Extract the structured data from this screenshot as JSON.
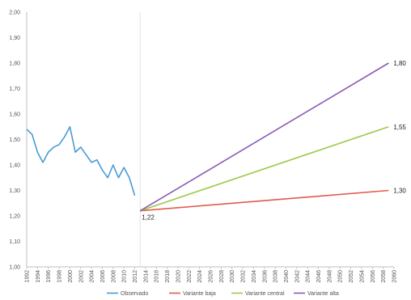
{
  "chart_data": {
    "type": "line",
    "title": "",
    "xlabel": "",
    "ylabel": "",
    "ylim": [
      1.0,
      2.0
    ],
    "xlim": [
      1992,
      2060
    ],
    "y_ticks": [
      "1,00",
      "1,10",
      "1,20",
      "1,30",
      "1,40",
      "1,50",
      "1,60",
      "1,70",
      "1,80",
      "1,90",
      "2,00"
    ],
    "x_ticks": [
      "1992",
      "1994",
      "1996",
      "1998",
      "2000",
      "2002",
      "2004",
      "2006",
      "2008",
      "2010",
      "2012",
      "2014",
      "2016",
      "2018",
      "2020",
      "2022",
      "2024",
      "2026",
      "2028",
      "2030",
      "2032",
      "2034",
      "2036",
      "2038",
      "2040",
      "2042",
      "2044",
      "2046",
      "2048",
      "2050",
      "2052",
      "2054",
      "2056",
      "2058",
      "2060"
    ],
    "grid": false,
    "legend_position": "bottom",
    "projection_start_marker": 2013,
    "series": [
      {
        "name": "Observado",
        "color": "#4a9ad4",
        "points": [
          [
            1992,
            1.54
          ],
          [
            1993,
            1.52
          ],
          [
            1994,
            1.45
          ],
          [
            1995,
            1.41
          ],
          [
            1996,
            1.45
          ],
          [
            1997,
            1.47
          ],
          [
            1998,
            1.48
          ],
          [
            1999,
            1.51
          ],
          [
            2000,
            1.55
          ],
          [
            2001,
            1.45
          ],
          [
            2002,
            1.47
          ],
          [
            2003,
            1.44
          ],
          [
            2004,
            1.41
          ],
          [
            2005,
            1.42
          ],
          [
            2006,
            1.38
          ],
          [
            2007,
            1.35
          ],
          [
            2008,
            1.4
          ],
          [
            2009,
            1.35
          ],
          [
            2010,
            1.39
          ],
          [
            2011,
            1.35
          ],
          [
            2012,
            1.28
          ]
        ]
      },
      {
        "name": "Variante baja",
        "color": "#e05b4c",
        "points": [
          [
            2013,
            1.22
          ],
          [
            2059,
            1.3
          ]
        ]
      },
      {
        "name": "Variante central",
        "color": "#9cc94a",
        "points": [
          [
            2013,
            1.22
          ],
          [
            2059,
            1.55
          ]
        ]
      },
      {
        "name": "Variante alta",
        "color": "#8a5cb5",
        "points": [
          [
            2013,
            1.22
          ],
          [
            2059,
            1.8
          ]
        ]
      }
    ],
    "data_labels": [
      {
        "text": "1,22",
        "x": 2013,
        "y": 1.22
      },
      {
        "text": "1,80",
        "x": 2059,
        "y": 1.8
      },
      {
        "text": "1,55",
        "x": 2059,
        "y": 1.55
      },
      {
        "text": "1,30",
        "x": 2059,
        "y": 1.3
      }
    ]
  }
}
